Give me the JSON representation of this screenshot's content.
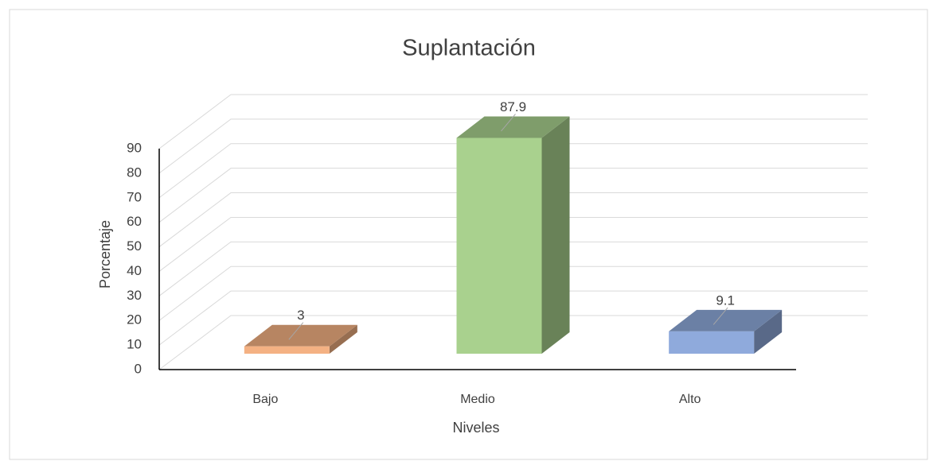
{
  "chart_data": {
    "type": "bar3d",
    "title": "Suplantación",
    "categories": [
      "Bajo",
      "Medio",
      "Alto"
    ],
    "values": [
      3,
      87.9,
      9.1
    ],
    "colors": [
      "#f4b183",
      "#a9d18e",
      "#8faadc"
    ],
    "xlabel": "Niveles",
    "ylabel": "Porcentaje",
    "ylim": [
      0,
      90
    ],
    "yticks": [
      0,
      10,
      20,
      30,
      40,
      50,
      60,
      70,
      80,
      90
    ],
    "grid": true
  }
}
